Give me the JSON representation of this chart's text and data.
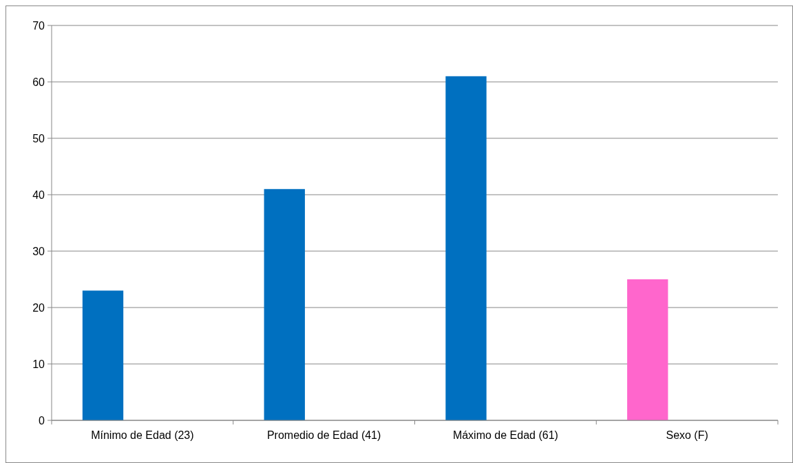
{
  "chart_data": {
    "type": "bar",
    "categories": [
      "Mínimo de Edad (23)",
      "Promedio de Edad (41)",
      "Máximo de Edad (61)",
      "Sexo (F)"
    ],
    "values": [
      23,
      41,
      61,
      25
    ],
    "colors": [
      "#0070c0",
      "#0070c0",
      "#0070c0",
      "#ff66cc"
    ],
    "ylim": [
      0,
      70
    ],
    "yticks": [
      0,
      10,
      20,
      30,
      40,
      50,
      60,
      70
    ],
    "grid": "y"
  }
}
